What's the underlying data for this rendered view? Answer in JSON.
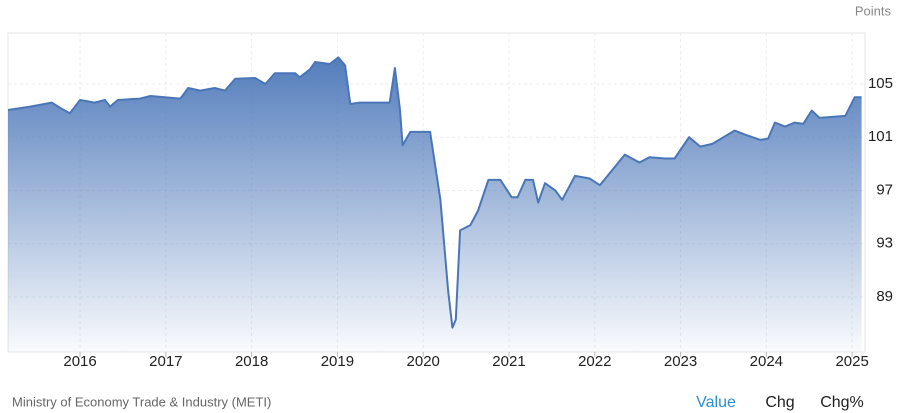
{
  "chart_data": {
    "type": "area",
    "unit_label": "Points",
    "source": "Ministry of Economy Trade & Industry (METI)",
    "buttons": [
      "Value",
      "Chg",
      "Chg%"
    ],
    "active_button": "Value",
    "x": [
      2015.16,
      2015.42,
      2015.67,
      2015.77,
      2015.88,
      2016.0,
      2016.17,
      2016.29,
      2016.35,
      2016.44,
      2016.7,
      2016.82,
      2017.17,
      2017.26,
      2017.4,
      2017.57,
      2017.69,
      2017.81,
      2018.04,
      2018.16,
      2018.27,
      2018.51,
      2018.56,
      2018.68,
      2018.74,
      2018.91,
      2019.01,
      2019.09,
      2019.15,
      2019.26,
      2019.61,
      2019.67,
      2019.73,
      2019.76,
      2019.85,
      2020.08,
      2020.2,
      2020.29,
      2020.34,
      2020.38,
      2020.43,
      2020.55,
      2020.64,
      2020.76,
      2020.9,
      2021.03,
      2021.1,
      2021.19,
      2021.28,
      2021.34,
      2021.42,
      2021.54,
      2021.62,
      2021.77,
      2021.94,
      2022.06,
      2022.2,
      2022.35,
      2022.52,
      2022.64,
      2022.82,
      2022.93,
      2023.1,
      2023.23,
      2023.37,
      2023.63,
      2023.75,
      2023.93,
      2024.02,
      2024.1,
      2024.22,
      2024.33,
      2024.43,
      2024.53,
      2024.62,
      2024.92,
      2025.03,
      2025.11
    ],
    "series": [
      {
        "name": "Points",
        "color": "#4a76b8",
        "values": [
          103.05,
          103.3,
          103.6,
          103.2,
          102.8,
          103.8,
          103.6,
          103.8,
          103.3,
          103.8,
          103.9,
          104.1,
          103.9,
          104.7,
          104.5,
          104.7,
          104.5,
          105.4,
          105.45,
          105.0,
          105.8,
          105.8,
          105.5,
          106.1,
          106.65,
          106.5,
          107.0,
          106.4,
          103.5,
          103.6,
          103.6,
          106.2,
          103.05,
          100.4,
          101.4,
          101.4,
          96.3,
          89.5,
          86.7,
          87.3,
          94.0,
          94.4,
          95.5,
          97.8,
          97.8,
          96.5,
          96.5,
          97.8,
          97.8,
          96.1,
          97.55,
          97.0,
          96.3,
          98.1,
          97.9,
          97.4,
          98.5,
          99.7,
          99.1,
          99.5,
          99.4,
          99.4,
          101.0,
          100.3,
          100.5,
          101.5,
          101.2,
          100.8,
          100.9,
          102.1,
          101.8,
          102.1,
          102.0,
          103.0,
          102.45,
          102.6,
          104.0,
          104.0
        ]
      }
    ],
    "xlim": [
      2015.16,
      2025.15
    ],
    "xticks": [
      2016,
      2017,
      2018,
      2019,
      2020,
      2021,
      2022,
      2023,
      2024,
      2025
    ],
    "ylim": [
      84.87,
      108.83
    ],
    "yticks": [
      89,
      93,
      97,
      101,
      105
    ],
    "grid": true
  }
}
